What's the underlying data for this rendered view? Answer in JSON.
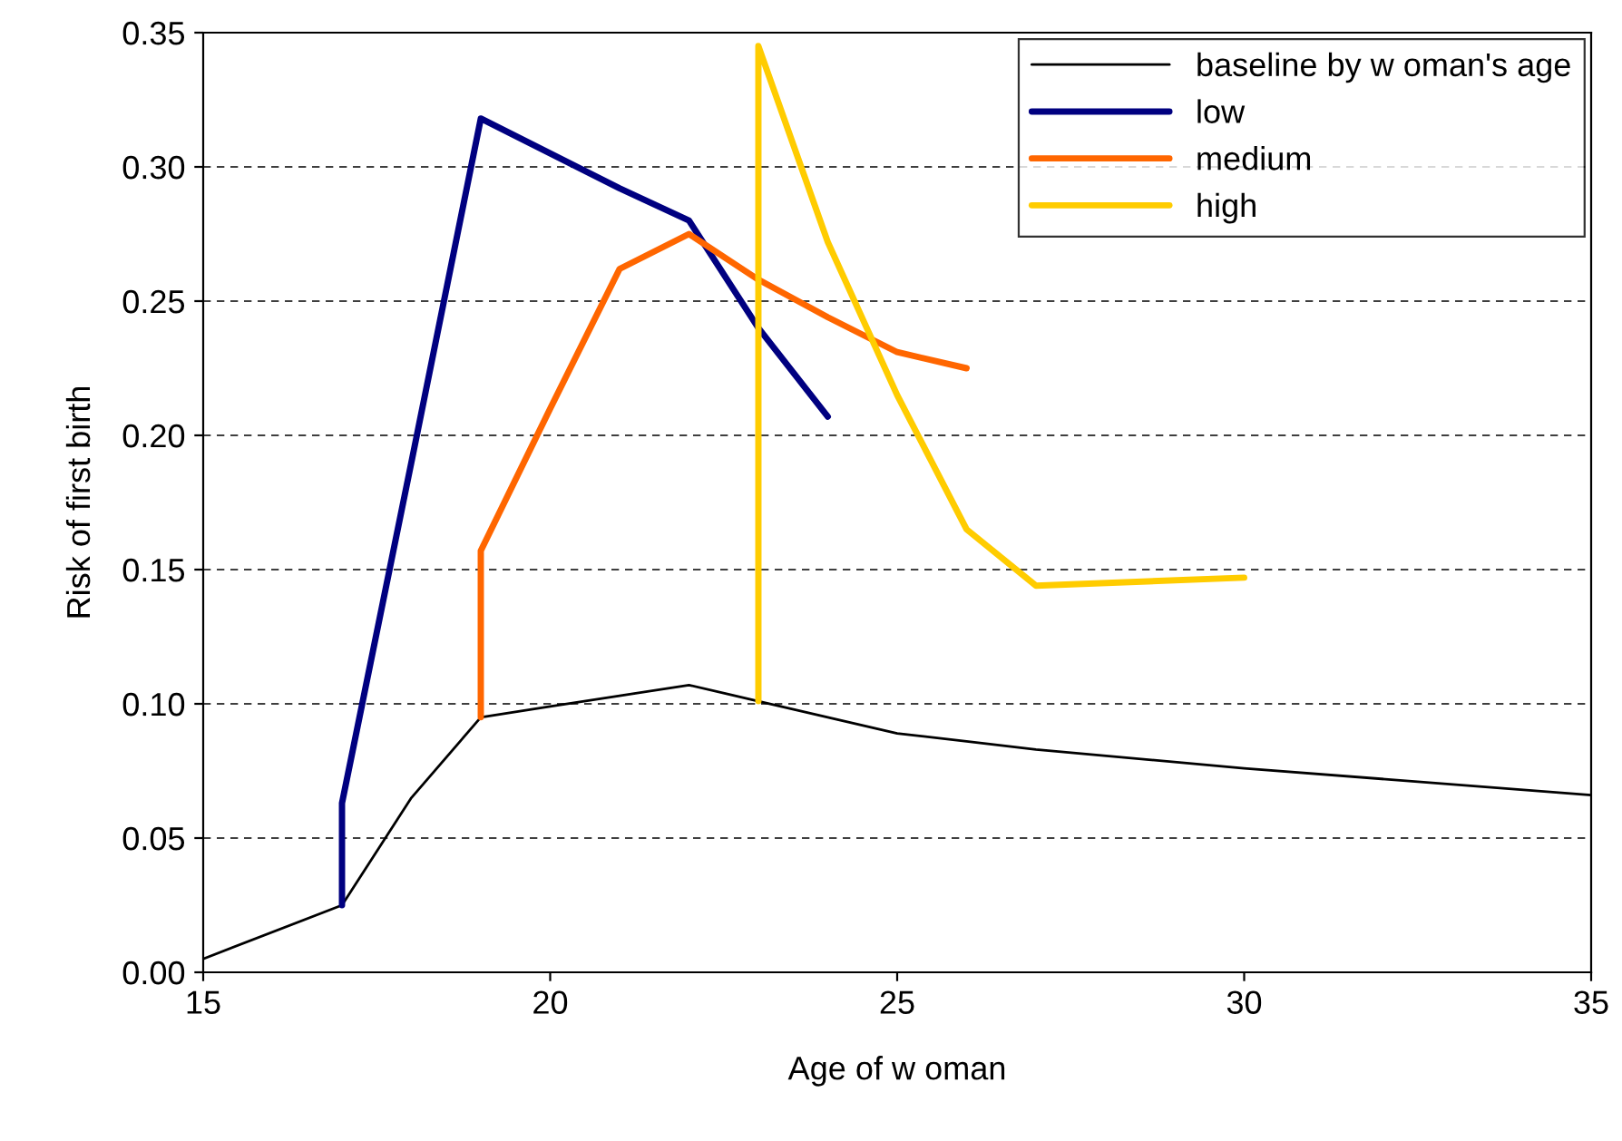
{
  "chart_data": {
    "type": "line",
    "xlabel": "Age of w oman",
    "ylabel": "Risk of first birth",
    "xlim": [
      15,
      35
    ],
    "xticks": [
      15,
      20,
      25,
      30,
      35
    ],
    "ylim": [
      0,
      0.35
    ],
    "yticks": [
      {
        "value": 0,
        "label": "0.00"
      },
      {
        "value": 0.05,
        "label": "0.05"
      },
      {
        "value": 0.1,
        "label": "0.10"
      },
      {
        "value": 0.15,
        "label": "0.15"
      },
      {
        "value": 0.2,
        "label": "0.20"
      },
      {
        "value": 0.25,
        "label": "0.25"
      },
      {
        "value": 0.3,
        "label": "0.30"
      },
      {
        "value": 0.35,
        "label": "0.35"
      }
    ],
    "grid": "y",
    "legend": "top right",
    "marker": "none",
    "series": [
      {
        "name": "baseline by w oman's age",
        "color": "#000000",
        "x": [
          15,
          17,
          18,
          19,
          20,
          21,
          22,
          23,
          24,
          25,
          26,
          27,
          30,
          35
        ],
        "values": [
          0.005,
          0.025,
          0.065,
          0.095,
          0.099,
          0.103,
          0.107,
          0.101,
          0.095,
          0.089,
          0.086,
          0.083,
          0.076,
          0.066
        ]
      },
      {
        "name": "low",
        "color": "#000080",
        "x": [
          17,
          17,
          18,
          19,
          21,
          22,
          23,
          24
        ],
        "values": [
          0.025,
          0.063,
          0.19,
          0.318,
          0.292,
          0.28,
          0.24,
          0.207
        ]
      },
      {
        "name": "medium",
        "color": "#ff6600",
        "x": [
          19,
          19,
          20,
          21,
          22,
          23,
          24,
          25,
          26
        ],
        "values": [
          0.095,
          0.157,
          0.21,
          0.262,
          0.275,
          0.258,
          0.244,
          0.231,
          0.225
        ]
      },
      {
        "name": "high",
        "color": "#ffcc00",
        "x": [
          23,
          23,
          24,
          25,
          26,
          27,
          30
        ],
        "values": [
          0.101,
          0.345,
          0.272,
          0.215,
          0.165,
          0.144,
          0.147
        ]
      }
    ]
  }
}
